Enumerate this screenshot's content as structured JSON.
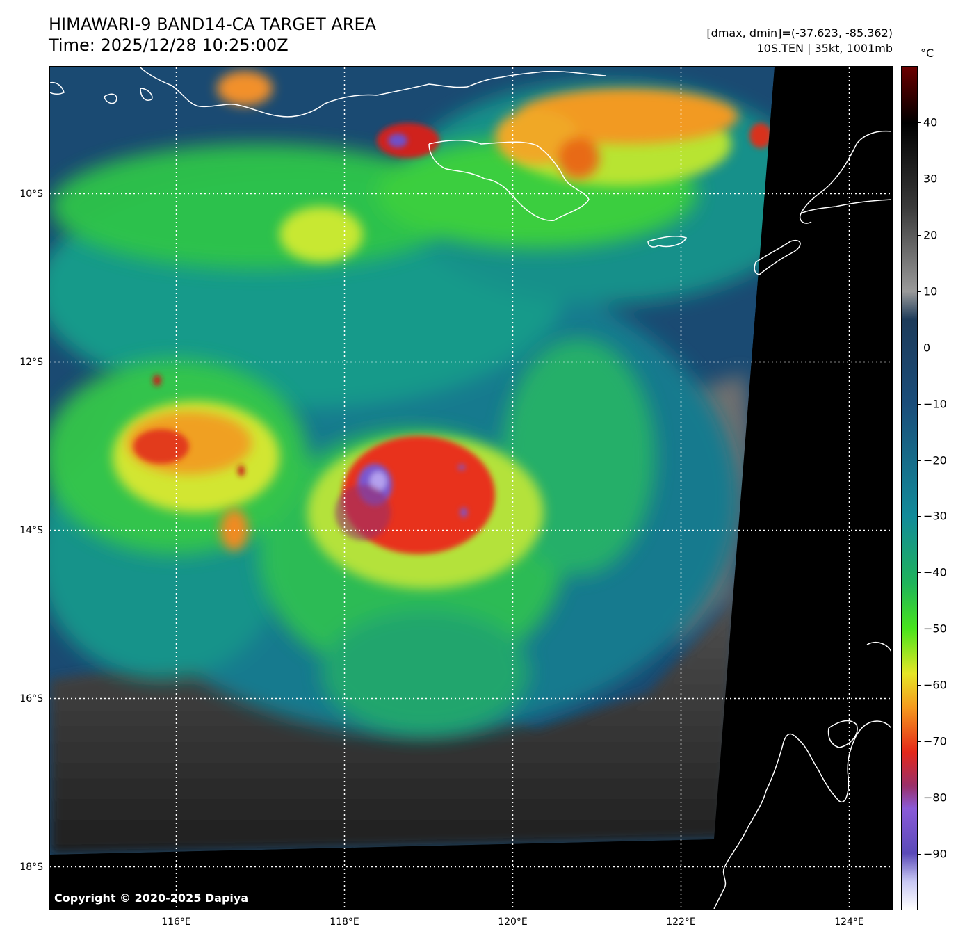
{
  "header": {
    "title_line1": "HIMAWARI-9 BAND14-CA TARGET AREA",
    "title_line2": "Time: 2025/12/28 10:25:00Z",
    "meta_line1": "[dmax, dmin]=(-37.623, -85.362)",
    "meta_line2": "10S.TEN | 35kt, 1001mb"
  },
  "map": {
    "copyright": "Copyright © 2020-2025 Dapiya",
    "lon_range": [
      114.5,
      124.5
    ],
    "lat_range": [
      -8.5,
      -18.5
    ],
    "lat_gridlines": [
      {
        "value": -10,
        "label": "10°S"
      },
      {
        "value": -12,
        "label": "12°S"
      },
      {
        "value": -14,
        "label": "14°S"
      },
      {
        "value": -16,
        "label": "16°S"
      },
      {
        "value": -18,
        "label": "18°S"
      }
    ],
    "lon_gridlines": [
      {
        "value": 116,
        "label": "116°E"
      },
      {
        "value": 118,
        "label": "118°E"
      },
      {
        "value": 120,
        "label": "120°E"
      },
      {
        "value": 122,
        "label": "122°E"
      },
      {
        "value": 124,
        "label": "124°E"
      }
    ],
    "storm_center": {
      "lon": 118.4,
      "lat": -13.3
    }
  },
  "colorbar": {
    "unit": "°C",
    "range": [
      -100,
      50
    ],
    "ticks": [
      {
        "value": 40,
        "label": "40"
      },
      {
        "value": 30,
        "label": "30"
      },
      {
        "value": 20,
        "label": "20"
      },
      {
        "value": 10,
        "label": "10"
      },
      {
        "value": 0,
        "label": "0"
      },
      {
        "value": -10,
        "label": "−10"
      },
      {
        "value": -20,
        "label": "−20"
      },
      {
        "value": -30,
        "label": "−30"
      },
      {
        "value": -40,
        "label": "−40"
      },
      {
        "value": -50,
        "label": "−50"
      },
      {
        "value": -60,
        "label": "−60"
      },
      {
        "value": -70,
        "label": "−70"
      },
      {
        "value": -80,
        "label": "−80"
      },
      {
        "value": -90,
        "label": "−90"
      }
    ],
    "stops": [
      {
        "value": 50,
        "color": "#6b0000"
      },
      {
        "value": 40,
        "color": "#000000"
      },
      {
        "value": 25,
        "color": "#3a3a3a"
      },
      {
        "value": 10,
        "color": "#9a9a9a"
      },
      {
        "value": 5,
        "color": "#1d3b5a"
      },
      {
        "value": -10,
        "color": "#1a4d7a"
      },
      {
        "value": -30,
        "color": "#128b9a"
      },
      {
        "value": -42,
        "color": "#1fb45a"
      },
      {
        "value": -50,
        "color": "#48e41c"
      },
      {
        "value": -58,
        "color": "#e6e626"
      },
      {
        "value": -64,
        "color": "#f59a1e"
      },
      {
        "value": -72,
        "color": "#e4281a"
      },
      {
        "value": -78,
        "color": "#9a2f6a"
      },
      {
        "value": -82,
        "color": "#8a5ad8"
      },
      {
        "value": -90,
        "color": "#5a4ab8"
      },
      {
        "value": -95,
        "color": "#c8c8f4"
      },
      {
        "value": -100,
        "color": "#ffffff"
      }
    ]
  }
}
